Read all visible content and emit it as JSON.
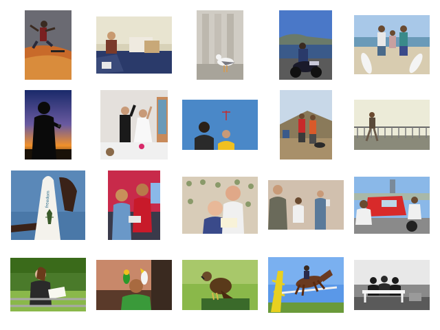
{
  "gallery": {
    "rows": [
      [
        {
          "id": "skateboard-trick"
        },
        {
          "id": "boy-unpacking-boxes"
        },
        {
          "id": "seagull-on-ledge"
        },
        {
          "id": "motorcycle-by-bay"
        },
        {
          "id": "surfers-on-beach"
        }
      ],
      [
        {
          "id": "silhouette-sunset-phone"
        },
        {
          "id": "wedding-couple-cheering"
        },
        {
          "id": "two-people-sky"
        },
        {
          "id": "hikers-with-dog"
        },
        {
          "id": "jogger-by-railing"
        }
      ],
      [
        {
          "id": "surfboard-holder",
          "board_text": "freedom"
        },
        {
          "id": "girls-with-laptop"
        },
        {
          "id": "boys-reading-on-couch"
        },
        {
          "id": "people-in-room"
        },
        {
          "id": "scooter-riders-street"
        }
      ],
      [
        {
          "id": "woman-reading-on-bench"
        },
        {
          "id": "child-with-parrots"
        },
        {
          "id": "hawk-on-perch"
        },
        {
          "id": "horse-jumping-obstacle"
        },
        {
          "id": "people-on-bench-bw"
        }
      ]
    ]
  }
}
